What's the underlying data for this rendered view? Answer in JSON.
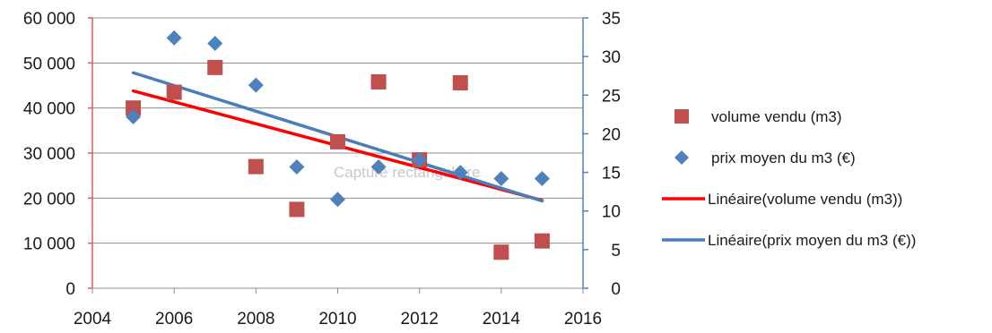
{
  "chart_data": {
    "type": "scatter",
    "title": "",
    "xlabel": "",
    "ylabel": "",
    "xlim": [
      2004,
      2016
    ],
    "x_ticks": [
      "2004",
      "2006",
      "2008",
      "2010",
      "2012",
      "2014",
      "2016"
    ],
    "y_left": {
      "lim": [
        0,
        60000
      ],
      "ticks": [
        "0",
        "10 000",
        "20 000",
        "30 000",
        "40 000",
        "50 000",
        "60 000"
      ]
    },
    "y_right": {
      "lim": [
        0,
        35
      ],
      "ticks": [
        "0",
        "5",
        "10",
        "15",
        "20",
        "25",
        "30",
        "35"
      ]
    },
    "grid": true,
    "legend_position": "right",
    "series": [
      {
        "name": "volume vendu (m3)",
        "axis": "left",
        "marker": "square",
        "color": "#c0504d",
        "x": [
          2005,
          2006,
          2007,
          2008,
          2009,
          2010,
          2011,
          2012,
          2013,
          2014,
          2015
        ],
        "y": [
          40000,
          43500,
          49000,
          27000,
          17500,
          32500,
          45800,
          28500,
          45600,
          8000,
          10500
        ]
      },
      {
        "name": "prix moyen du m3 (€)",
        "axis": "right",
        "marker": "diamond",
        "color": "#4f81bd",
        "x": [
          2005,
          2006,
          2007,
          2008,
          2009,
          2010,
          2011,
          2012,
          2013,
          2014,
          2015
        ],
        "y": [
          22.2,
          32.4,
          31.7,
          26.3,
          15.7,
          11.5,
          15.7,
          16.6,
          15.0,
          14.2,
          14.2
        ]
      }
    ],
    "trendlines": [
      {
        "name": "Linéaire(volume vendu (m3))",
        "axis": "left",
        "color": "#ff0000",
        "x": [
          2005,
          2015
        ],
        "y": [
          43800,
          19500
        ]
      },
      {
        "name": "Linéaire(prix moyen du m3 (€))",
        "axis": "right",
        "color": "#4a7ebb",
        "x": [
          2005,
          2015
        ],
        "y": [
          27.9,
          11.3
        ]
      }
    ],
    "watermark": "Capture rectangulaire"
  }
}
